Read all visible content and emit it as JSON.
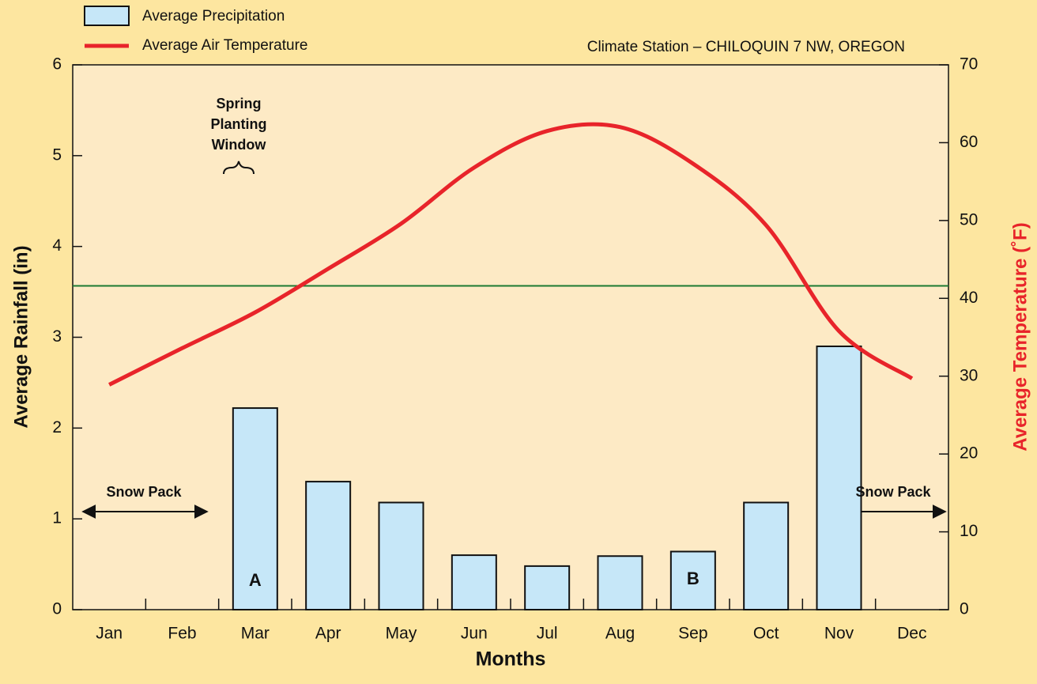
{
  "chart_data": {
    "type": "combo",
    "title": "Climate Station – CHILOQUIN 7 NW, OREGON",
    "xlabel": "Months",
    "ylabel": "Average Rainfall (in)",
    "y2label": "Average Temperature (˚F)",
    "categories": [
      "Jan",
      "Feb",
      "Mar",
      "Apr",
      "May",
      "Jun",
      "Jul",
      "Aug",
      "Sep",
      "Oct",
      "Nov",
      "Dec"
    ],
    "series": [
      {
        "name": "Average Precipitation",
        "type": "bar",
        "color": "#c6e7f8",
        "values": [
          0,
          0,
          2.22,
          1.41,
          1.18,
          0.6,
          0.48,
          0.59,
          0.64,
          1.18,
          2.9,
          0
        ]
      },
      {
        "name": "Average Air Temperature",
        "type": "line",
        "axis": "y2",
        "color": "#e8242a",
        "values": [
          28.9,
          33.6,
          38.2,
          43.8,
          49.6,
          56.8,
          61.5,
          62,
          57.3,
          49.4,
          35.8,
          29.7
        ]
      }
    ],
    "reference_line": {
      "value": 41.6,
      "axis": "y2",
      "color": "#1d7a33"
    },
    "ylim": [
      0,
      6
    ],
    "yticks": [
      0,
      1,
      2,
      3,
      4,
      5,
      6
    ],
    "y2lim": [
      0,
      70
    ],
    "y2ticks": [
      0,
      10,
      20,
      30,
      40,
      50,
      60,
      70
    ],
    "annotations": [
      {
        "lines": [
          "Spring",
          "Planting",
          "Window"
        ]
      },
      {
        "text": "Snow Pack"
      },
      {
        "text": "Snow Pack"
      },
      {
        "text": "A"
      },
      {
        "text": "B"
      }
    ]
  }
}
